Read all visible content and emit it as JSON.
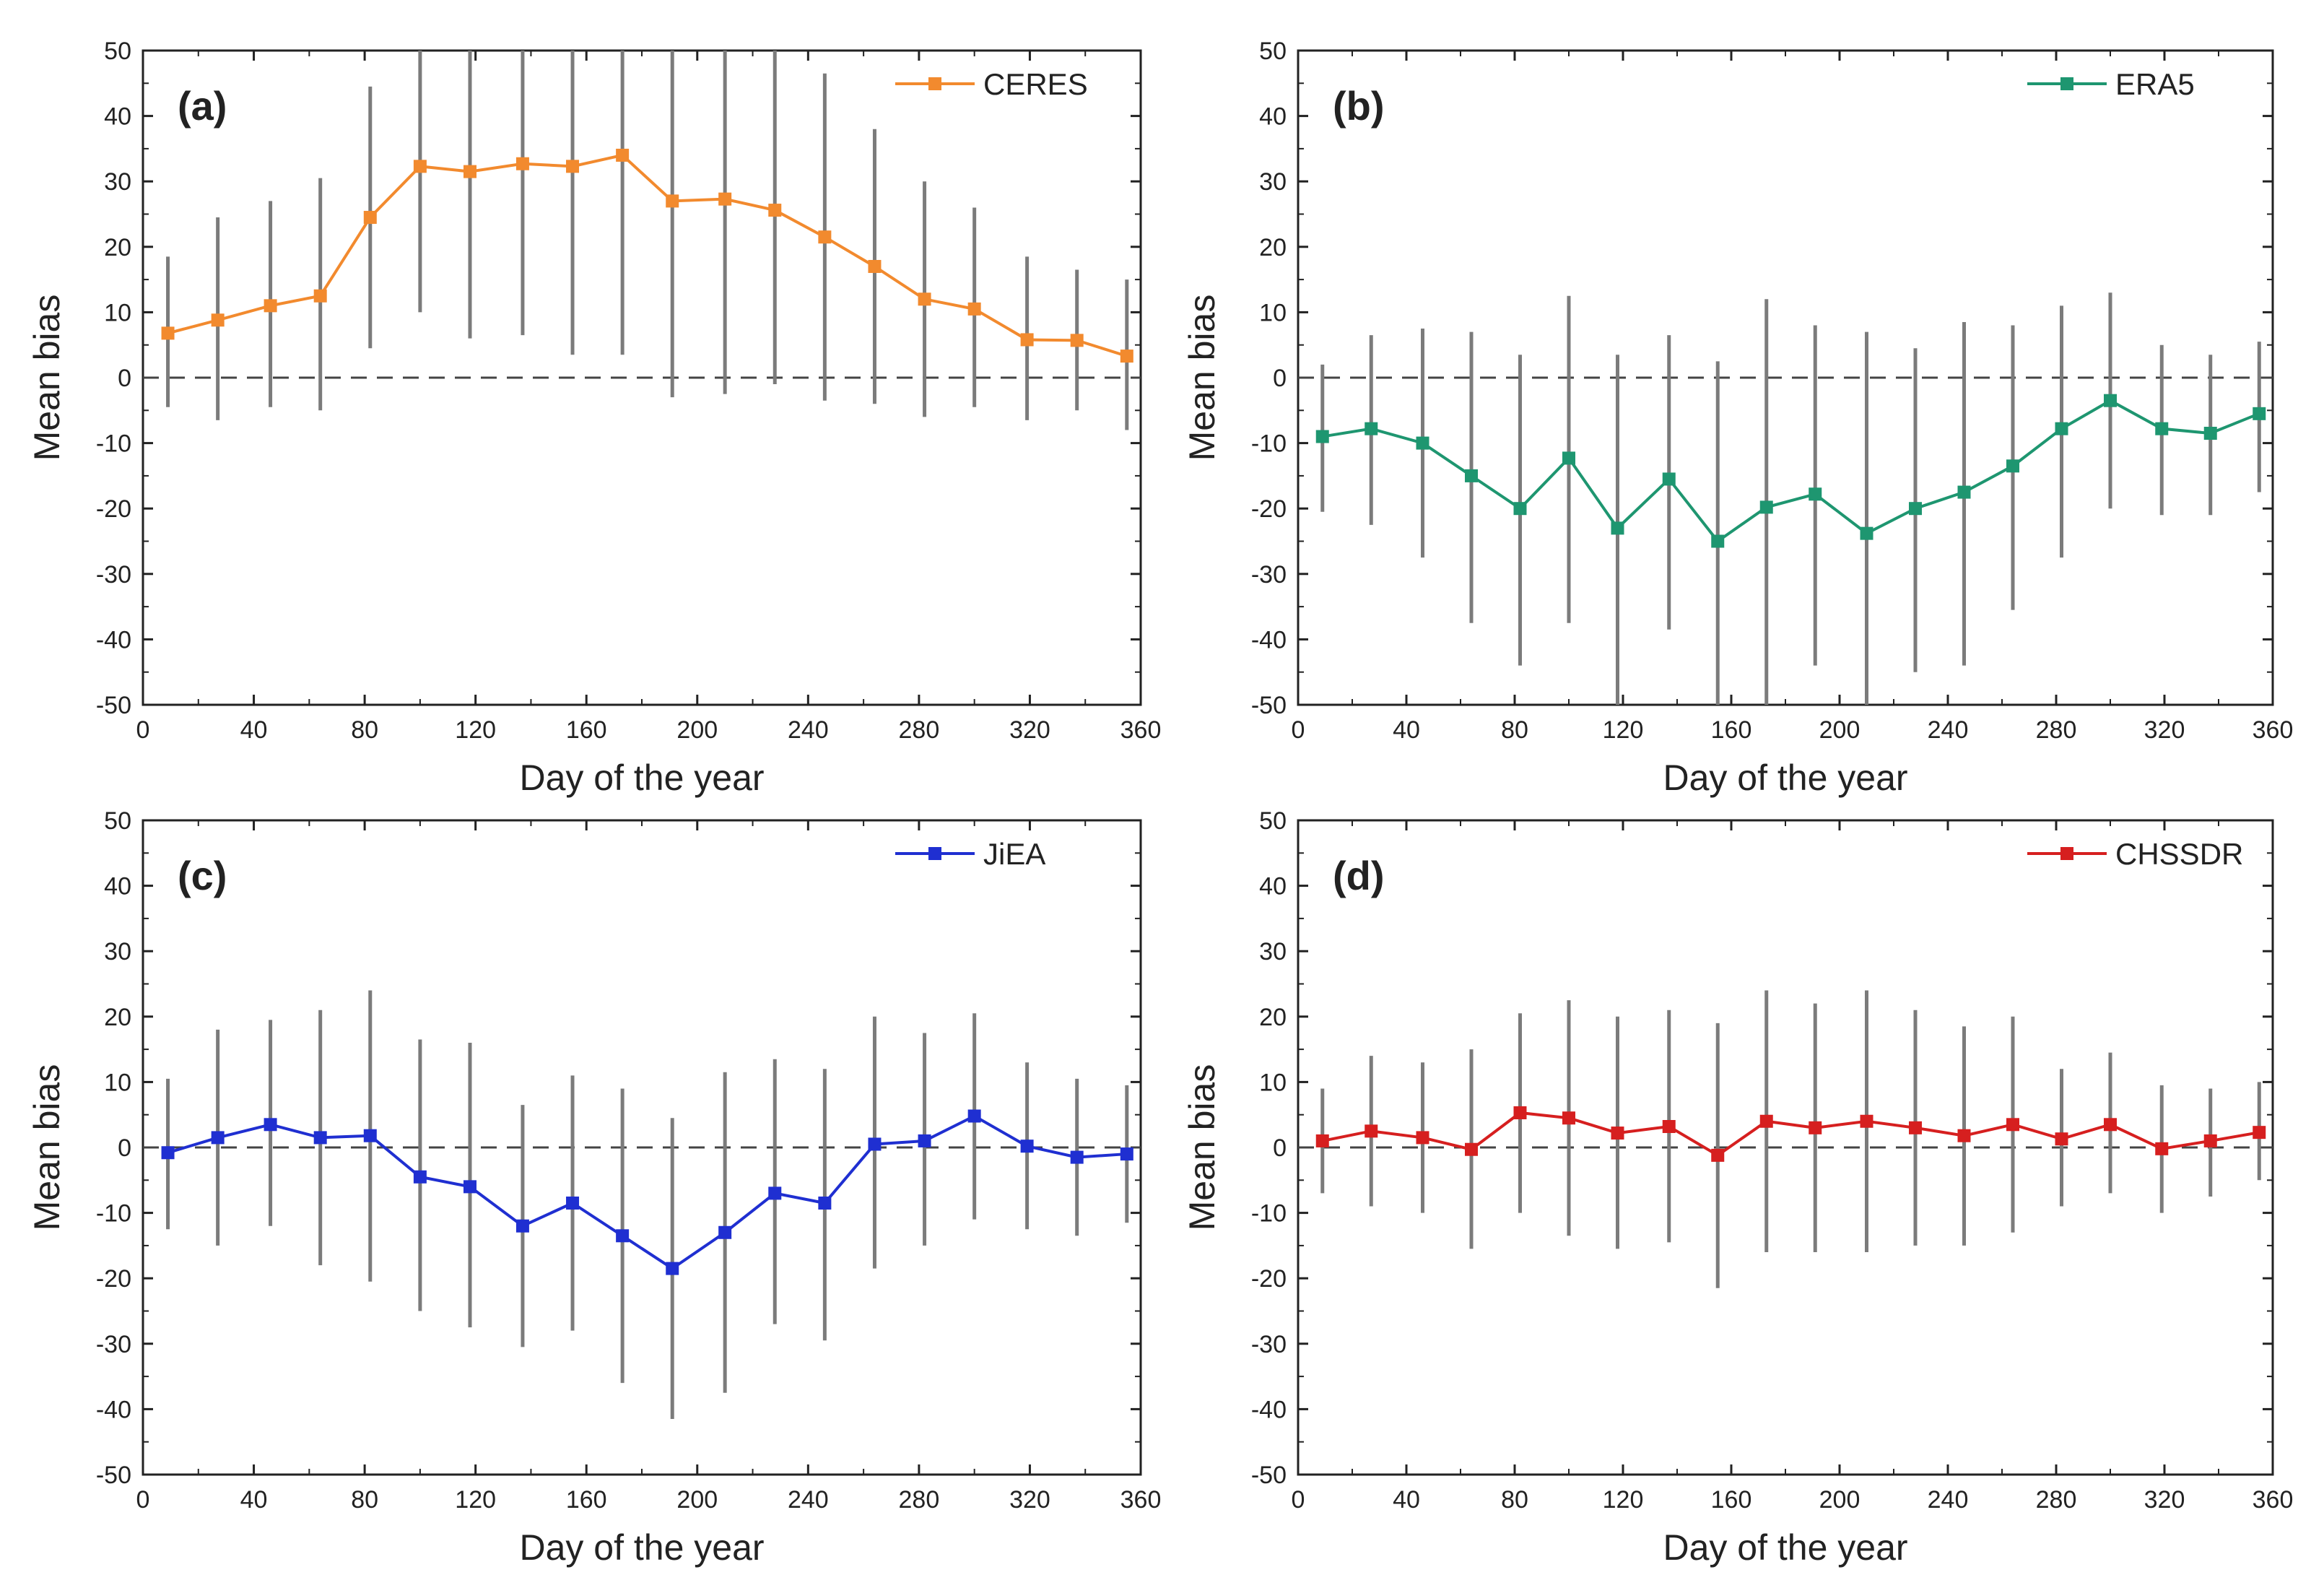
{
  "chart_data": [
    {
      "type": "line",
      "panel_label": "(a)",
      "legend": "CERES",
      "color": "#f28a2e",
      "xlabel": "Day of the year",
      "ylabel": "Mean bias",
      "xlim": [
        0,
        360
      ],
      "ylim": [
        -50,
        50
      ],
      "xticks": [
        "0",
        "40",
        "80",
        "120",
        "160",
        "200",
        "240",
        "280",
        "320",
        "360"
      ],
      "yticks": [
        "-50",
        "-40",
        "-30",
        "-20",
        "-10",
        "0",
        "10",
        "20",
        "30",
        "40",
        "50"
      ],
      "x": [
        9,
        27,
        46,
        64,
        82,
        100,
        118,
        137,
        155,
        173,
        191,
        210,
        228,
        246,
        264,
        282,
        300,
        319,
        337,
        355
      ],
      "values": [
        6.8,
        8.8,
        11.0,
        12.5,
        24.5,
        32.3,
        31.5,
        32.7,
        32.3,
        34.0,
        27.0,
        27.3,
        25.6,
        21.5,
        17.0,
        12.0,
        10.5,
        5.8,
        5.7,
        3.3
      ],
      "err_low": [
        -4.5,
        -6.5,
        -4.5,
        -5.0,
        4.5,
        10.0,
        6.0,
        6.5,
        3.5,
        3.5,
        -3.0,
        -2.5,
        -1.0,
        -3.5,
        -4.0,
        -6.0,
        -4.5,
        -6.5,
        -5.0,
        -8.0
      ],
      "err_high": [
        18.5,
        24.5,
        27.0,
        30.5,
        44.5,
        50.0,
        50.0,
        50.0,
        50.0,
        50.0,
        50.0,
        50.0,
        50.0,
        46.5,
        38.0,
        30.0,
        26.0,
        18.5,
        16.5,
        15.0
      ],
      "legend_position": "top-right",
      "zero_line": "dashed"
    },
    {
      "type": "line",
      "panel_label": "(b)",
      "legend": "ERA5",
      "color": "#1e9670",
      "xlabel": "Day of the year",
      "ylabel": "Mean bias",
      "xlim": [
        0,
        360
      ],
      "ylim": [
        -50,
        50
      ],
      "xticks": [
        "0",
        "40",
        "80",
        "120",
        "160",
        "200",
        "240",
        "280",
        "320",
        "360"
      ],
      "yticks": [
        "-50",
        "-40",
        "-30",
        "-20",
        "-10",
        "0",
        "10",
        "20",
        "30",
        "40",
        "50"
      ],
      "x": [
        9,
        27,
        46,
        64,
        82,
        100,
        118,
        137,
        155,
        173,
        191,
        210,
        228,
        246,
        264,
        282,
        300,
        319,
        337,
        355
      ],
      "values": [
        -9.0,
        -7.8,
        -10.0,
        -15.0,
        -20.0,
        -12.3,
        -23.0,
        -15.5,
        -25.0,
        -19.8,
        -17.8,
        -23.8,
        -20.0,
        -17.5,
        -13.5,
        -7.8,
        -3.5,
        -7.8,
        -8.5,
        -5.5
      ],
      "err_low": [
        -20.5,
        -22.5,
        -27.5,
        -37.5,
        -44.0,
        -37.5,
        -50.0,
        -38.5,
        -50.0,
        -50.0,
        -44.0,
        -50.0,
        -45.0,
        -44.0,
        -35.5,
        -27.5,
        -20.0,
        -21.0,
        -21.0,
        -17.5
      ],
      "err_high": [
        2.0,
        6.5,
        7.5,
        7.0,
        3.5,
        12.5,
        3.5,
        6.5,
        2.5,
        12.0,
        8.0,
        7.0,
        4.5,
        8.5,
        8.0,
        11.0,
        13.0,
        5.0,
        3.5,
        5.5
      ],
      "legend_position": "top-right",
      "zero_line": "dashed"
    },
    {
      "type": "line",
      "panel_label": "(c)",
      "legend": "JiEA",
      "color": "#1f2fd1",
      "xlabel": "Day of the year",
      "ylabel": "Mean bias",
      "xlim": [
        0,
        360
      ],
      "ylim": [
        -50,
        50
      ],
      "xticks": [
        "0",
        "40",
        "80",
        "120",
        "160",
        "200",
        "240",
        "280",
        "320",
        "360"
      ],
      "yticks": [
        "-50",
        "-40",
        "-30",
        "-20",
        "-10",
        "0",
        "10",
        "20",
        "30",
        "40",
        "50"
      ],
      "x": [
        9,
        27,
        46,
        64,
        82,
        100,
        118,
        137,
        155,
        173,
        191,
        210,
        228,
        246,
        264,
        282,
        300,
        319,
        337,
        355
      ],
      "values": [
        -0.8,
        1.5,
        3.5,
        1.5,
        1.8,
        -4.5,
        -6.0,
        -12.0,
        -8.5,
        -13.5,
        -18.5,
        -13.0,
        -7.0,
        -8.5,
        0.5,
        1.0,
        4.8,
        0.2,
        -1.5,
        -1.0
      ],
      "err_low": [
        -12.5,
        -15.0,
        -12.0,
        -18.0,
        -20.5,
        -25.0,
        -27.5,
        -30.5,
        -28.0,
        -36.0,
        -41.5,
        -37.5,
        -27.0,
        -29.5,
        -18.5,
        -15.0,
        -11.0,
        -12.5,
        -13.5,
        -11.5
      ],
      "err_high": [
        10.5,
        18.0,
        19.5,
        21.0,
        24.0,
        16.5,
        16.0,
        6.5,
        11.0,
        9.0,
        4.5,
        11.5,
        13.5,
        12.0,
        20.0,
        17.5,
        20.5,
        13.0,
        10.5,
        9.5
      ],
      "legend_position": "top-right",
      "zero_line": "dashed"
    },
    {
      "type": "line",
      "panel_label": "(d)",
      "legend": "CHSSDR",
      "color": "#d61f1f",
      "xlabel": "Day of the year",
      "ylabel": "Mean bias",
      "xlim": [
        0,
        360
      ],
      "ylim": [
        -50,
        50
      ],
      "xticks": [
        "0",
        "40",
        "80",
        "120",
        "160",
        "200",
        "240",
        "280",
        "320",
        "360"
      ],
      "yticks": [
        "-50",
        "-40",
        "-30",
        "-20",
        "-10",
        "0",
        "10",
        "20",
        "30",
        "40",
        "50"
      ],
      "x": [
        9,
        27,
        46,
        64,
        82,
        100,
        118,
        137,
        155,
        173,
        191,
        210,
        228,
        246,
        264,
        282,
        300,
        319,
        337,
        355
      ],
      "values": [
        1.0,
        2.5,
        1.5,
        -0.3,
        5.3,
        4.5,
        2.2,
        3.2,
        -1.2,
        4.0,
        3.0,
        4.0,
        3.0,
        1.8,
        3.5,
        1.3,
        3.5,
        -0.2,
        1.0,
        2.3
      ],
      "err_low": [
        -7.0,
        -9.0,
        -10.0,
        -15.5,
        -10.0,
        -13.5,
        -15.5,
        -14.5,
        -21.5,
        -16.0,
        -16.0,
        -16.0,
        -15.0,
        -15.0,
        -13.0,
        -9.0,
        -7.0,
        -10.0,
        -7.5,
        -5.0
      ],
      "err_high": [
        9.0,
        14.0,
        13.0,
        15.0,
        20.5,
        22.5,
        20.0,
        21.0,
        19.0,
        24.0,
        22.0,
        24.0,
        21.0,
        18.5,
        20.0,
        12.0,
        14.5,
        9.5,
        9.0,
        10.0
      ],
      "legend_position": "top-right",
      "zero_line": "dashed"
    }
  ]
}
